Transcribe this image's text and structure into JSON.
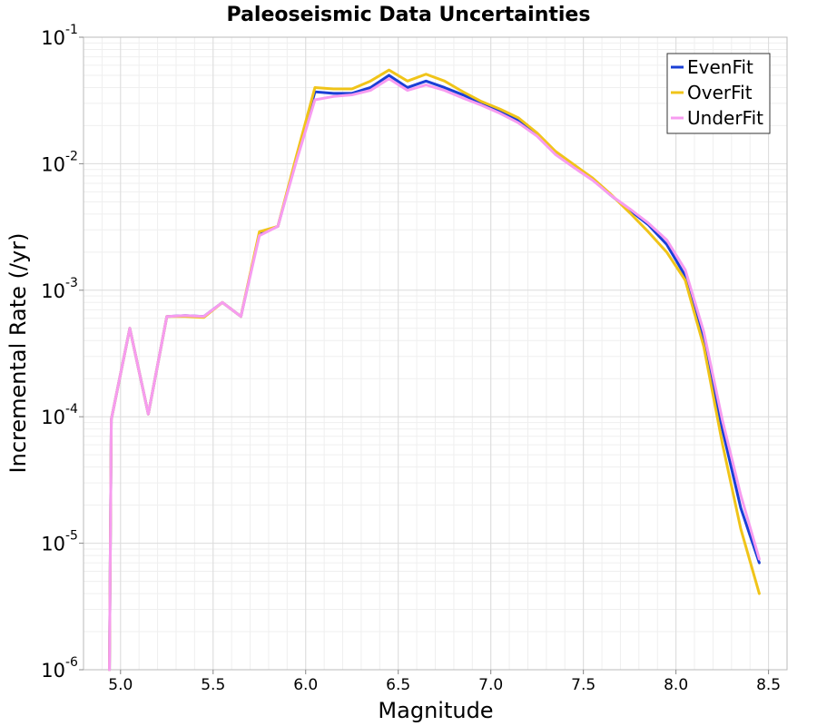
{
  "chart_data": {
    "type": "line",
    "title": "Paleoseismic Data Uncertainties",
    "xlabel": "Magnitude",
    "ylabel": "Incremental Rate (/yr)",
    "y_scale": "log",
    "xlim": [
      4.8,
      8.6
    ],
    "ylim": [
      1e-06,
      0.1
    ],
    "xticks": [
      "5.0",
      "5.5",
      "6.0",
      "6.5",
      "7.0",
      "7.5",
      "8.0",
      "8.5"
    ],
    "xtick_values": [
      5.0,
      5.5,
      6.0,
      6.5,
      7.0,
      7.5,
      8.0,
      8.5
    ],
    "yticks": [
      {
        "base": "10",
        "exp": "-1",
        "value": 0.1
      },
      {
        "base": "10",
        "exp": "-2",
        "value": 0.01
      },
      {
        "base": "10",
        "exp": "-3",
        "value": 0.001
      },
      {
        "base": "10",
        "exp": "-4",
        "value": 0.0001
      },
      {
        "base": "10",
        "exp": "-5",
        "value": 1e-05
      },
      {
        "base": "10",
        "exp": "-6",
        "value": 1e-06
      }
    ],
    "grid": true,
    "legend_position": "top-right",
    "x": [
      4.94,
      4.95,
      5.05,
      5.15,
      5.25,
      5.35,
      5.45,
      5.55,
      5.65,
      5.75,
      5.85,
      5.95,
      6.05,
      6.15,
      6.25,
      6.35,
      6.45,
      6.55,
      6.65,
      6.75,
      6.85,
      6.95,
      7.05,
      7.15,
      7.25,
      7.35,
      7.45,
      7.55,
      7.65,
      7.75,
      7.85,
      7.95,
      8.05,
      8.15,
      8.25,
      8.35,
      8.45
    ],
    "series": [
      {
        "name": "EvenFit",
        "color": "#1a3fd6",
        "values": [
          1e-06,
          9.5e-05,
          0.0005,
          0.000105,
          0.00062,
          0.00063,
          0.00062,
          0.0008,
          0.00062,
          0.0028,
          0.0032,
          0.011,
          0.037,
          0.036,
          0.036,
          0.04,
          0.05,
          0.04,
          0.045,
          0.04,
          0.035,
          0.03,
          0.026,
          0.022,
          0.017,
          0.012,
          0.0095,
          0.0075,
          0.0056,
          0.0043,
          0.0033,
          0.0023,
          0.0013,
          0.00042,
          8e-05,
          1.9e-05,
          7e-06
        ]
      },
      {
        "name": "OverFit",
        "color": "#f0c419",
        "values": [
          1e-06,
          9.5e-05,
          0.0005,
          0.000105,
          0.00062,
          0.00062,
          0.00061,
          0.0008,
          0.00062,
          0.0029,
          0.0032,
          0.0115,
          0.04,
          0.039,
          0.039,
          0.045,
          0.055,
          0.045,
          0.051,
          0.045,
          0.037,
          0.031,
          0.027,
          0.023,
          0.0175,
          0.0125,
          0.0098,
          0.0077,
          0.0057,
          0.0041,
          0.0029,
          0.002,
          0.0012,
          0.00036,
          6.2e-05,
          1.3e-05,
          4e-06
        ]
      },
      {
        "name": "UnderFit",
        "color": "#f79cf0",
        "values": [
          1e-06,
          9.5e-05,
          0.0005,
          0.000105,
          0.00062,
          0.00063,
          0.00062,
          0.0008,
          0.00062,
          0.0027,
          0.0032,
          0.0105,
          0.032,
          0.034,
          0.035,
          0.038,
          0.047,
          0.038,
          0.042,
          0.038,
          0.033,
          0.029,
          0.025,
          0.021,
          0.0165,
          0.0118,
          0.0093,
          0.0074,
          0.0056,
          0.0044,
          0.0034,
          0.0025,
          0.00145,
          0.00047,
          9.5e-05,
          2.4e-05,
          7.5e-06
        ]
      }
    ]
  }
}
